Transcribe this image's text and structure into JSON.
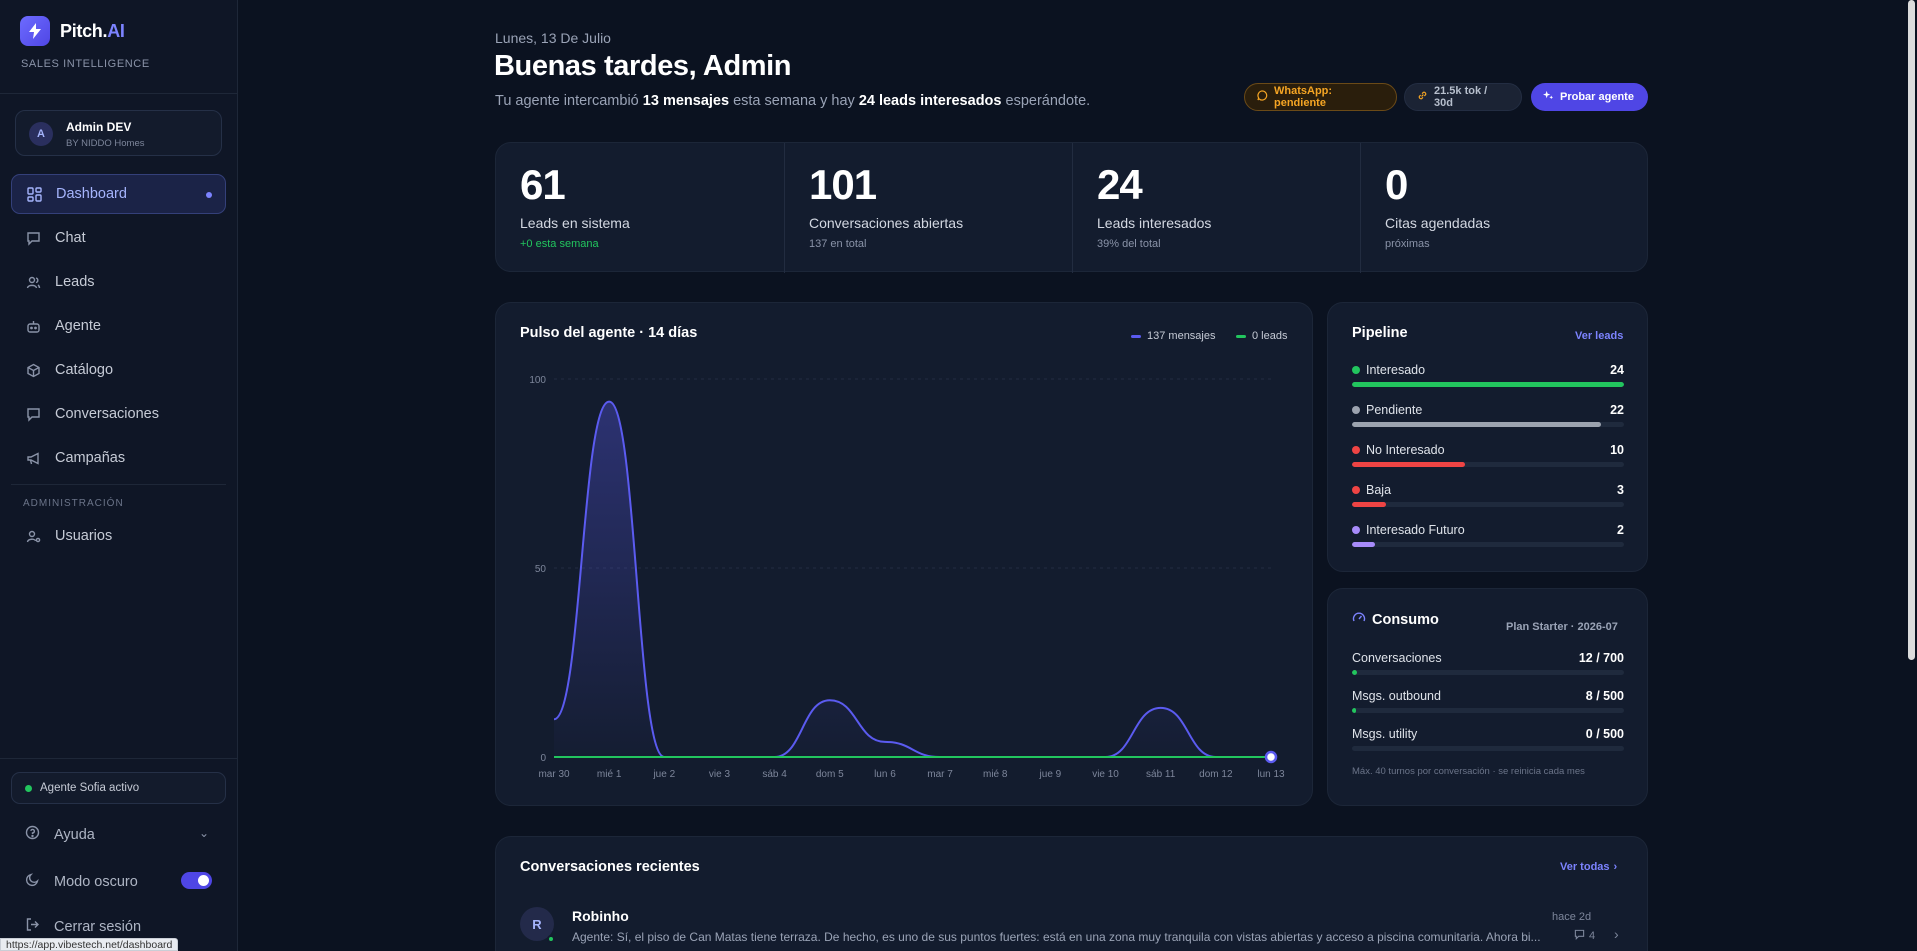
{
  "brand": {
    "name": "Pitch.",
    "accent": ".AI",
    "ai": "AI",
    "subtitle": "SALES INTELLIGENCE"
  },
  "user": {
    "initial": "A",
    "name": "Admin DEV",
    "org": "BY NIDDO Homes"
  },
  "nav": {
    "items": [
      {
        "label": "Dashboard",
        "icon": "grid-icon",
        "active": true
      },
      {
        "label": "Chat",
        "icon": "chat-icon"
      },
      {
        "label": "Leads",
        "icon": "users-icon"
      },
      {
        "label": "Agente",
        "icon": "bot-icon"
      },
      {
        "label": "Catálogo",
        "icon": "box-icon"
      },
      {
        "label": "Conversaciones",
        "icon": "message-icon"
      },
      {
        "label": "Campañas",
        "icon": "megaphone-icon"
      }
    ],
    "admin_label": "ADMINISTRACIÓN",
    "admin_items": [
      {
        "label": "Usuarios",
        "icon": "user-cog-icon"
      }
    ]
  },
  "sidebar_bottom": {
    "agent_status": "Agente Sofia activo",
    "help": "Ayuda",
    "dark_mode": "Modo oscuro",
    "dark_mode_on": true,
    "logout": "Cerrar sesión"
  },
  "header": {
    "date": "Lunes, 13 De Julio",
    "greeting": "Buenas tardes, Admin",
    "summary_pre": "Tu agente intercambió ",
    "summary_msgs": "13 mensajes",
    "summary_mid": " esta semana y hay ",
    "summary_leads": "24 leads interesados",
    "summary_post": " esperándote.",
    "whatsapp": "WhatsApp: pendiente",
    "tokens": "21.5k tok / 30d",
    "try_agent": "Probar agente"
  },
  "stats": [
    {
      "value": "61",
      "label": "Leads en sistema",
      "sub": "+0 esta semana",
      "sub_green": true
    },
    {
      "value": "101",
      "label": "Conversaciones abiertas",
      "sub": "137 en total"
    },
    {
      "value": "24",
      "label": "Leads interesados",
      "sub": "39% del total"
    },
    {
      "value": "0",
      "label": "Citas agendadas",
      "sub": "próximas"
    }
  ],
  "pulse": {
    "title": "Pulso del agente · 14 días",
    "legend_msgs": "137 mensajes",
    "legend_leads": "0 leads"
  },
  "chart_data": {
    "type": "line",
    "title": "Pulso del agente · 14 días",
    "categories": [
      "mar 30",
      "mié 1",
      "jue 2",
      "vie 3",
      "sáb 4",
      "dom 5",
      "lun 6",
      "mar 7",
      "mié 8",
      "jue 9",
      "vie 10",
      "sáb 11",
      "dom 12",
      "lun 13"
    ],
    "ylim": [
      0,
      100
    ],
    "yticks": [
      0,
      50,
      100
    ],
    "series": [
      {
        "name": "137 mensajes",
        "color": "#5b5bf0",
        "values": [
          10,
          94,
          0,
          0,
          0,
          15,
          4,
          0,
          0,
          0,
          0,
          13,
          0,
          0
        ]
      },
      {
        "name": "0 leads",
        "color": "#22c55e",
        "values": [
          0,
          0,
          0,
          0,
          0,
          0,
          0,
          0,
          0,
          0,
          0,
          0,
          0,
          0
        ]
      }
    ],
    "grid": true
  },
  "pipeline": {
    "title": "Pipeline",
    "link": "Ver leads",
    "items": [
      {
        "label": "Interesado",
        "count": "24",
        "fraction": 1.0,
        "color": "#22c55e"
      },
      {
        "label": "Pendiente",
        "count": "22",
        "fraction": 0.917,
        "color": "#9ca3af"
      },
      {
        "label": "No Interesado",
        "count": "10",
        "fraction": 0.417,
        "color": "#ef4444"
      },
      {
        "label": "Baja",
        "count": "3",
        "fraction": 0.125,
        "color": "#ef4444"
      },
      {
        "label": "Interesado Futuro",
        "count": "2",
        "fraction": 0.083,
        "color": "#a78bfa"
      }
    ]
  },
  "consumo": {
    "title": "Consumo",
    "plan": "Plan Starter · 2026-07",
    "items": [
      {
        "label": "Conversaciones",
        "value": "12 / 700",
        "fraction": 0.017
      },
      {
        "label": "Msgs. outbound",
        "value": "8 / 500",
        "fraction": 0.016
      },
      {
        "label": "Msgs. utility",
        "value": "0 / 500",
        "fraction": 0.0
      }
    ],
    "note": "Máx. 40 turnos por conversación · se reinicia cada mes"
  },
  "recent": {
    "title": "Conversaciones recientes",
    "link": "Ver todas",
    "items": [
      {
        "initial": "R",
        "name": "Robinho",
        "time": "hace 2d",
        "count": "4",
        "message": "Agente: Sí, el piso de Can Matas tiene terraza. De hecho, es uno de sus puntos fuertes: está en una zona muy tranquila con vistas abiertas y acceso a piscina comunitaria. Ahora bi..."
      }
    ]
  },
  "status_url": "https://app.vibestech.net/dashboard"
}
